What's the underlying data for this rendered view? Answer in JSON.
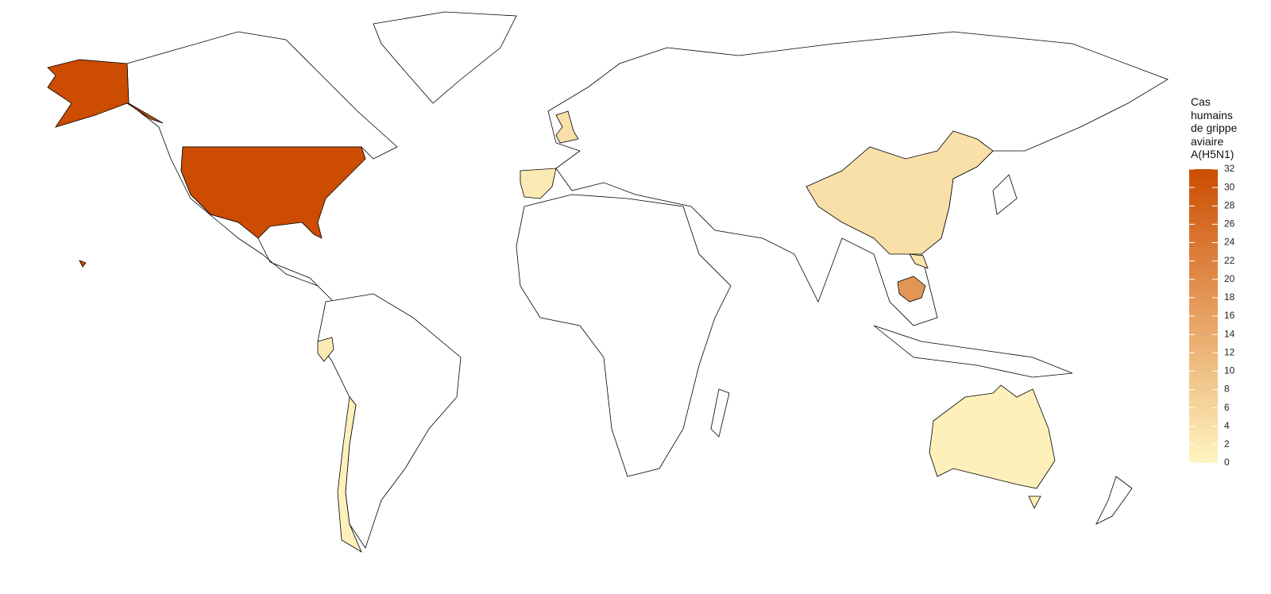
{
  "chart_data": {
    "type": "choropleth",
    "legend_title": "Cas humains de grippe aviaire A(H5N1)",
    "values": [
      32,
      32,
      32,
      18,
      4,
      3,
      4,
      2,
      2,
      1,
      1,
      1
    ],
    "color_low": "#fff5c0",
    "color_high": "#cc4c02",
    "clim": [
      0,
      32
    ],
    "cticks": [
      0,
      2,
      4,
      6,
      8,
      10,
      12,
      14,
      16,
      18,
      20,
      22,
      24,
      26,
      28,
      30,
      32
    ]
  }
}
